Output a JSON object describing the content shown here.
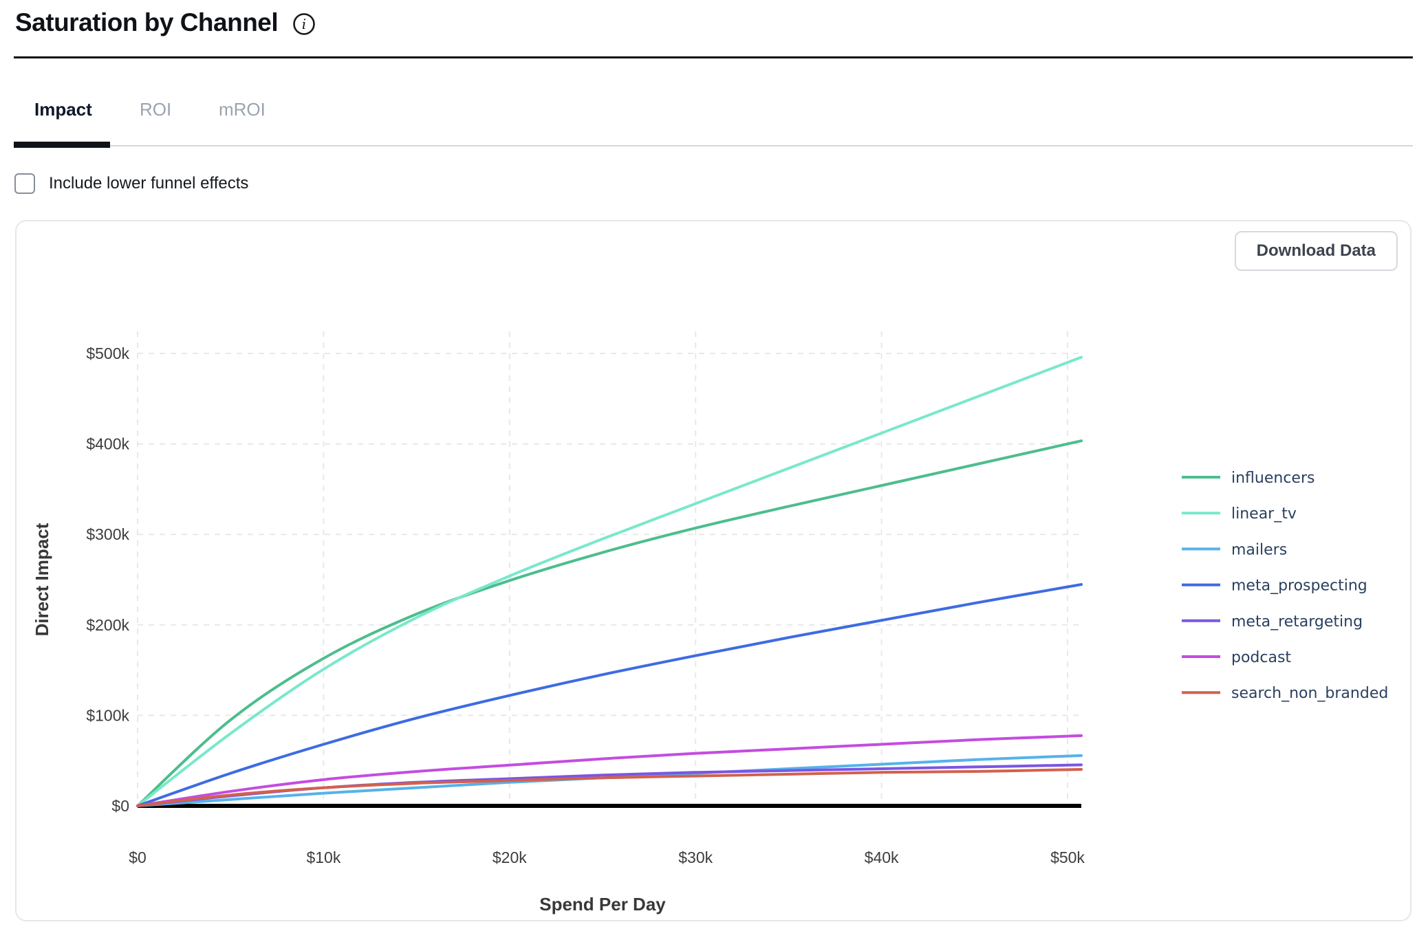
{
  "header": {
    "title": "Saturation by Channel"
  },
  "tabs": [
    {
      "label": "Impact",
      "active": true
    },
    {
      "label": "ROI",
      "active": false
    },
    {
      "label": "mROI",
      "active": false
    }
  ],
  "controls": {
    "checkbox_label": "Include lower funnel effects",
    "checkbox_checked": false
  },
  "card": {
    "download_button_label": "Download Data"
  },
  "icons": {
    "info": "info-icon"
  },
  "colors": {
    "zero_line": "#000000",
    "gridline": "#e8e8e8",
    "tab_active": "#0f172a",
    "tab_inactive": "#9aa3af"
  },
  "chart_data": {
    "type": "line",
    "title": "",
    "xlabel": "Spend Per Day",
    "ylabel": "Direct Impact",
    "xlim": [
      0,
      50000
    ],
    "ylim": [
      0,
      500000
    ],
    "grid": true,
    "gridline_style": "dashed",
    "zero_line": true,
    "legend_position": "right",
    "x_tick_labels": [
      "$0",
      "$10k",
      "$20k",
      "$30k",
      "$40k",
      "$50k"
    ],
    "x_tick_values": [
      0,
      10000,
      20000,
      30000,
      40000,
      50000
    ],
    "y_tick_labels": [
      "$0",
      "$100k",
      "$200k",
      "$300k",
      "$400k",
      "$500k"
    ],
    "y_tick_values": [
      0,
      100000,
      200000,
      300000,
      400000,
      500000
    ],
    "x": [
      0,
      5000,
      10000,
      15000,
      20000,
      25000,
      30000,
      35000,
      40000,
      45000,
      50000
    ],
    "series": [
      {
        "name": "influencers",
        "color": "#4dbd8d",
        "values": [
          0,
          95000,
          163000,
          212000,
          249000,
          280000,
          307000,
          331000,
          354000,
          377000,
          400000
        ]
      },
      {
        "name": "linear_tv",
        "color": "#79e8cb",
        "values": [
          0,
          80000,
          151000,
          208000,
          254000,
          295000,
          334000,
          373000,
          412000,
          451000,
          490000
        ]
      },
      {
        "name": "mailers",
        "color": "#55b2ea",
        "values": [
          0,
          7000,
          14000,
          20000,
          26000,
          31000,
          36000,
          41000,
          46000,
          51000,
          55000
        ]
      },
      {
        "name": "meta_prospecting",
        "color": "#3e6be2",
        "values": [
          0,
          36000,
          68000,
          97000,
          122000,
          145000,
          166000,
          186000,
          205000,
          224000,
          242000
        ]
      },
      {
        "name": "meta_retargeting",
        "color": "#7c55e3",
        "values": [
          0,
          11000,
          20000,
          26000,
          30000,
          34000,
          37000,
          39000,
          41000,
          43000,
          45000
        ]
      },
      {
        "name": "podcast",
        "color": "#c44ce0",
        "values": [
          0,
          16000,
          29000,
          38000,
          45000,
          52000,
          58000,
          63000,
          68000,
          73000,
          77000
        ]
      },
      {
        "name": "search_non_branded",
        "color": "#d2614d",
        "values": [
          0,
          12000,
          20000,
          25000,
          28000,
          31000,
          33000,
          35000,
          37000,
          38000,
          40000
        ]
      }
    ]
  }
}
